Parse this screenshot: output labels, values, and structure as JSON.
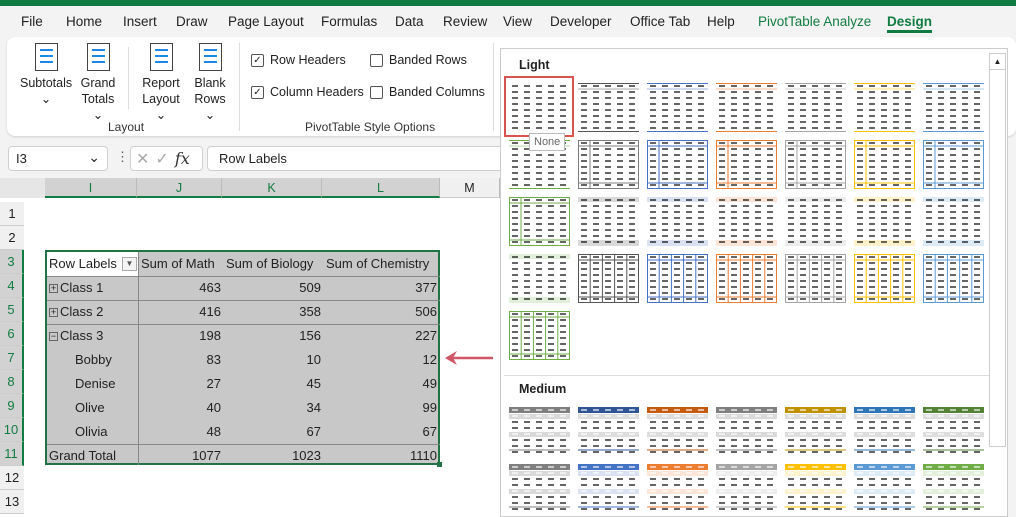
{
  "menu": {
    "tabs": [
      "File",
      "Home",
      "Insert",
      "Draw",
      "Page Layout",
      "Formulas",
      "Data",
      "Review",
      "View",
      "Developer",
      "Office Tab",
      "Help",
      "PivotTable Analyze",
      "Design"
    ]
  },
  "ribbon": {
    "layout": {
      "subtotals": "Subtotals",
      "grand_totals_1": "Grand",
      "grand_totals_2": "Totals",
      "report_layout_1": "Report",
      "report_layout_2": "Layout",
      "blank_rows_1": "Blank",
      "blank_rows_2": "Rows",
      "group": "Layout"
    },
    "style_options": {
      "row_headers": "Row Headers",
      "row_headers_checked": true,
      "column_headers": "Column Headers",
      "column_headers_checked": true,
      "banded_rows": "Banded Rows",
      "banded_rows_checked": false,
      "banded_columns": "Banded Columns",
      "banded_columns_checked": false,
      "group": "PivotTable Style Options"
    }
  },
  "formula_bar": {
    "name_box": "I3",
    "fx": "fx",
    "formula": "Row Labels"
  },
  "columns": [
    "I",
    "J",
    "K",
    "L",
    "M"
  ],
  "rows": [
    "1",
    "2",
    "3",
    "4",
    "5",
    "6",
    "7",
    "8",
    "9",
    "10",
    "11",
    "12",
    "13"
  ],
  "pivot": {
    "headers": [
      "Row Labels",
      "Sum of Math",
      "Sum of Biology",
      "Sum of Chemistry"
    ],
    "rows": [
      {
        "label": "Class 1",
        "toggle": "+",
        "values": [
          "463",
          "509",
          "377"
        ]
      },
      {
        "label": "Class 2",
        "toggle": "+",
        "values": [
          "416",
          "358",
          "506"
        ]
      },
      {
        "label": "Class 3",
        "toggle": "−",
        "values": [
          "198",
          "156",
          "227"
        ]
      },
      {
        "label": "Bobby",
        "values": [
          "83",
          "10",
          "12"
        ]
      },
      {
        "label": "Denise",
        "values": [
          "27",
          "45",
          "49"
        ]
      },
      {
        "label": "Olive",
        "values": [
          "40",
          "34",
          "99"
        ]
      },
      {
        "label": "Olivia",
        "values": [
          "48",
          "67",
          "67"
        ]
      },
      {
        "label": "Grand Total",
        "values": [
          "1077",
          "1023",
          "1110"
        ]
      }
    ]
  },
  "gallery": {
    "light_label": "Light",
    "medium_label": "Medium",
    "tooltip": "None",
    "accent_colors": [
      "#7f7f7f",
      "#4472c4",
      "#ed7d31",
      "#a5a5a5",
      "#ffc000",
      "#5b9bd5",
      "#70ad47"
    ],
    "highlight": "#d9534f"
  }
}
